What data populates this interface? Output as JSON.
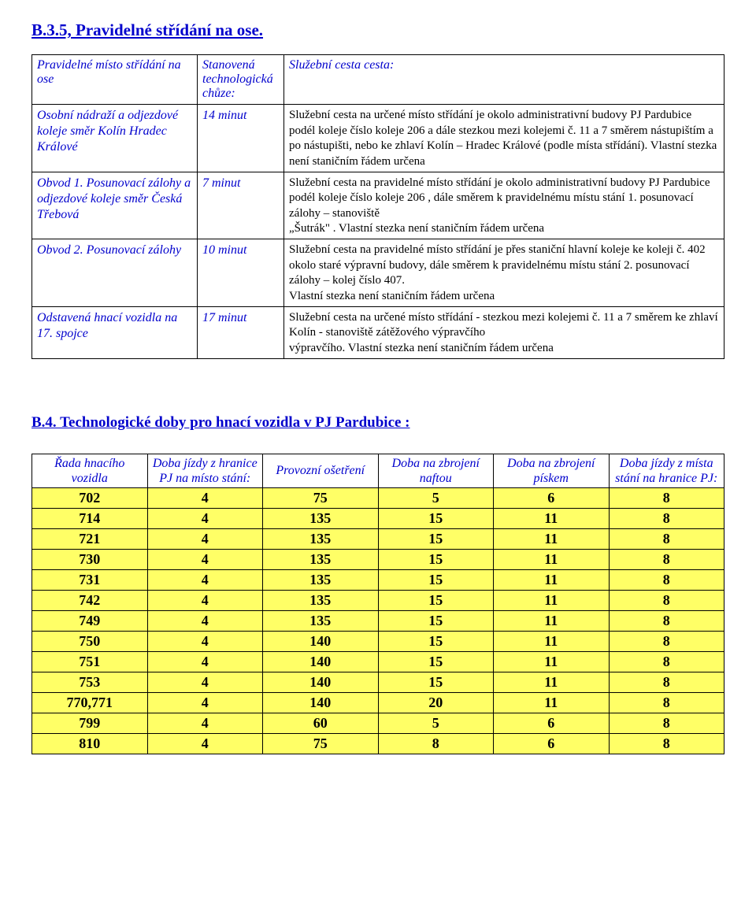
{
  "title": "B.3.5, Pravidelné střídání na ose.",
  "table1": {
    "headers": {
      "c1": "Pravidelné místo střídání na ose",
      "c2": "Stanovená technologická chůze:",
      "c3": "Služební cesta cesta:"
    },
    "rows": [
      {
        "place": "Osobní nádraží a odjezdové koleje směr Kolín Hradec Králové",
        "time": "14 minut",
        "desc_black": "Služební cesta na určené místo střídání je okolo  administrativní budovy PJ Pardubice podél koleje číslo  koleje  206 a dále stezkou mezi kolejemi č. 11 a 7 směrem nástupištím a po nástupišti, nebo ke zhlaví Kolín – Hradec Králové (podle místa střídání). Vlastní stezka",
        "desc_last": "není staničním řádem určena"
      },
      {
        "place": "Obvod 1. Posunovací zálohy a odjezdové koleje směr Česká Třebová",
        "time": "7 minut",
        "desc_black": "Služební cesta na pravidelné místo střídání  je okolo  administrativní budovy PJ Pardubice podél koleje číslo  koleje 206 , dále směrem k pravidelnému místu stání 1. posunovací zálohy –  stanoviště",
        "desc_last": "„Šutrák\" . Vlastní stezka není staničním řádem určena"
      },
      {
        "place": "Obvod 2. Posunovací zálohy",
        "time": "10 minut",
        "desc_black": "Služební cesta na pravidelné místo střídání  je přes staniční hlavní koleje ke koleji č. 402 okolo staré výpravní budovy, dále směrem k pravidelnému místu stání 2. posunovací zálohy – kolej číslo 407.",
        "desc_last": "Vlastní stezka není staničním řádem určena"
      },
      {
        "place": "Odstavená hnací vozidla na 17. spojce",
        "time": "17 minut",
        "desc_black": "Služební cesta na určené místo střídání - stezkou mezi kolejemi č. 11 a 7  směrem ke zhlaví Kolín  - stanoviště zátěžového výpravčího",
        "desc_last": "výpravčího. Vlastní stezka není staničním řádem určena"
      }
    ]
  },
  "section2_title": "B.4. Technologické doby pro hnací vozidla v PJ Pardubice :",
  "table2": {
    "headers": {
      "c1": "Řada hnacího vozidla",
      "c2": "Doba jízdy z hranice PJ na místo stání:",
      "c3": "Provozní ošetření",
      "c4": "Doba na zbrojení naftou",
      "c5": "Doba na zbrojení pískem",
      "c6": "Doba jízdy z místa stání na hranice PJ:"
    },
    "rows": [
      [
        "702",
        "4",
        "75",
        "5",
        "6",
        "8"
      ],
      [
        "714",
        "4",
        "135",
        "15",
        "11",
        "8"
      ],
      [
        "721",
        "4",
        "135",
        "15",
        "11",
        "8"
      ],
      [
        "730",
        "4",
        "135",
        "15",
        "11",
        "8"
      ],
      [
        "731",
        "4",
        "135",
        "15",
        "11",
        "8"
      ],
      [
        "742",
        "4",
        "135",
        "15",
        "11",
        "8"
      ],
      [
        "749",
        "4",
        "135",
        "15",
        "11",
        "8"
      ],
      [
        "750",
        "4",
        "140",
        "15",
        "11",
        "8"
      ],
      [
        "751",
        "4",
        "140",
        "15",
        "11",
        "8"
      ],
      [
        "753",
        "4",
        "140",
        "15",
        "11",
        "8"
      ],
      [
        "770,771",
        "4",
        "140",
        "20",
        "11",
        "8"
      ],
      [
        "799",
        "4",
        "60",
        "5",
        "6",
        "8"
      ],
      [
        "810",
        "4",
        "75",
        "8",
        "6",
        "8"
      ]
    ],
    "cell_bg": "#ffff66"
  }
}
